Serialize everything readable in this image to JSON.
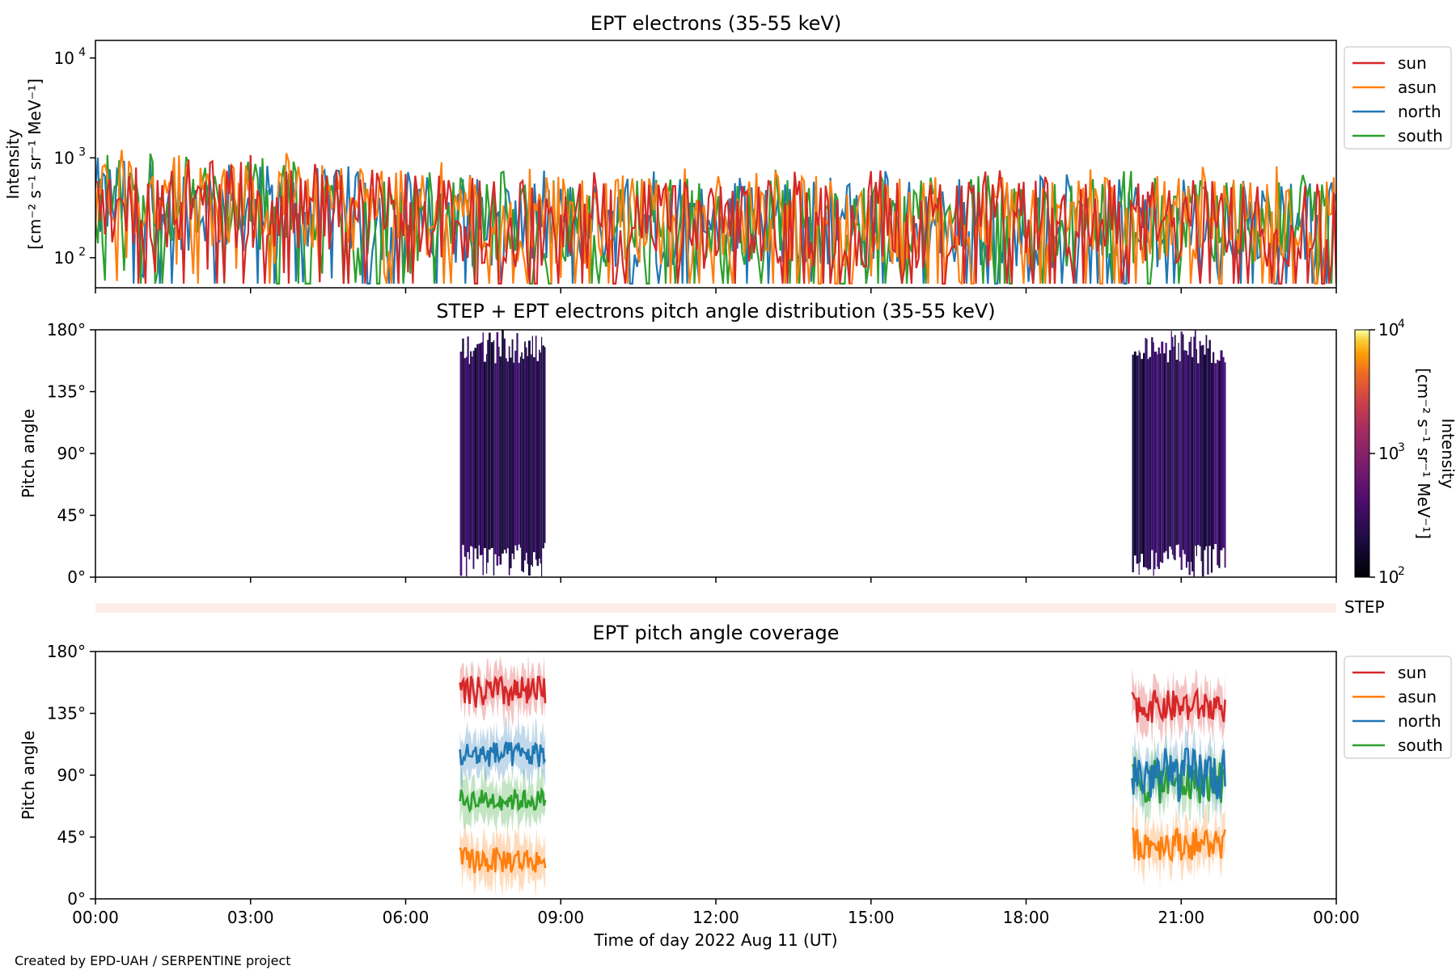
{
  "colors": {
    "sun": "#d62728",
    "asun": "#ff7f0e",
    "north": "#1f77b4",
    "south": "#2ca02c",
    "step_strip": "#fdeee9"
  },
  "credit": "Created by EPD-UAH / SERPENTINE project",
  "xaxis": {
    "label": "Time of day 2022 Aug 11 (UT)",
    "range_hours": [
      0,
      24
    ],
    "ticks": [
      {
        "hour": 0,
        "label": "00:00"
      },
      {
        "hour": 3,
        "label": "03:00"
      },
      {
        "hour": 6,
        "label": "06:00"
      },
      {
        "hour": 9,
        "label": "09:00"
      },
      {
        "hour": 12,
        "label": "12:00"
      },
      {
        "hour": 15,
        "label": "15:00"
      },
      {
        "hour": 18,
        "label": "18:00"
      },
      {
        "hour": 21,
        "label": "21:00"
      },
      {
        "hour": 24,
        "label": "00:00"
      }
    ]
  },
  "chart_data": [
    {
      "type": "line",
      "title": "EPT electrons (35-55 keV)",
      "ylabel_line1": "Intensity",
      "ylabel_line2": "[cm⁻² s⁻¹ sr⁻¹ MeV⁻¹]",
      "yscale": "log",
      "ylim": [
        50,
        15000
      ],
      "yticks": [
        {
          "value": 100,
          "base": "10",
          "exp": "2"
        },
        {
          "value": 1000,
          "base": "10",
          "exp": "3"
        },
        {
          "value": 10000,
          "base": "10",
          "exp": "4"
        }
      ],
      "legend_placement": "outside-right-top",
      "series": [
        {
          "name": "sun",
          "color_key": "sun",
          "baseline_early": 420,
          "baseline_late": 240,
          "min": 55,
          "max": 1200,
          "time_range_hours": [
            0,
            24
          ]
        },
        {
          "name": "asun",
          "color_key": "asun",
          "baseline_early": 460,
          "baseline_late": 260,
          "min": 55,
          "max": 1200,
          "time_range_hours": [
            0,
            24
          ]
        },
        {
          "name": "north",
          "color_key": "north",
          "baseline_early": 400,
          "baseline_late": 240,
          "min": 55,
          "max": 1100,
          "time_range_hours": [
            0,
            24
          ]
        },
        {
          "name": "south",
          "color_key": "south",
          "baseline_early": 430,
          "baseline_late": 250,
          "min": 55,
          "max": 1100,
          "time_range_hours": [
            0,
            24
          ]
        }
      ]
    },
    {
      "type": "heatmap",
      "title": "STEP + EPT electrons pitch angle distribution (35-55 keV)",
      "ylabel": "Pitch angle",
      "ylim": [
        0,
        180
      ],
      "yticks": [
        {
          "value": 0,
          "label": "0°"
        },
        {
          "value": 45,
          "label": "45°"
        },
        {
          "value": 90,
          "label": "90°"
        },
        {
          "value": 135,
          "label": "135°"
        },
        {
          "value": 180,
          "label": "180°"
        }
      ],
      "data_intervals_hours": [
        [
          7.05,
          8.7
        ],
        [
          20.05,
          21.85
        ]
      ],
      "intensity_typical": 200,
      "colorbar": {
        "label_line1": "Intensity",
        "label_line2": "[cm⁻² s⁻¹ sr⁻¹ MeV⁻¹]",
        "scale": "log",
        "range": [
          100,
          10000
        ],
        "ticks": [
          {
            "value": 100,
            "base": "10",
            "exp": "2"
          },
          {
            "value": 1000,
            "base": "10",
            "exp": "3"
          },
          {
            "value": 10000,
            "base": "10",
            "exp": "4"
          }
        ]
      }
    },
    {
      "type": "table",
      "label": "STEP",
      "note": "STEP coverage strip spanning the full day"
    },
    {
      "type": "line",
      "title": "EPT pitch angle coverage",
      "ylabel": "Pitch angle",
      "ylim": [
        0,
        180
      ],
      "yticks": [
        {
          "value": 0,
          "label": "0°"
        },
        {
          "value": 45,
          "label": "45°"
        },
        {
          "value": 90,
          "label": "90°"
        },
        {
          "value": 135,
          "label": "135°"
        },
        {
          "value": 180,
          "label": "180°"
        }
      ],
      "legend_placement": "outside-right-top",
      "data_intervals_hours": [
        [
          7.05,
          8.7
        ],
        [
          20.05,
          21.85
        ]
      ],
      "series": [
        {
          "name": "sun",
          "color_key": "sun",
          "mean_deg": [
            150,
            140
          ],
          "spread_deg": [
            15,
            15
          ]
        },
        {
          "name": "asun",
          "color_key": "asun",
          "mean_deg": [
            28,
            40
          ],
          "spread_deg": [
            12,
            15
          ]
        },
        {
          "name": "north",
          "color_key": "north",
          "mean_deg": [
            105,
            90
          ],
          "spread_deg": [
            12,
            25
          ]
        },
        {
          "name": "south",
          "color_key": "south",
          "mean_deg": [
            72,
            85
          ],
          "spread_deg": [
            10,
            20
          ]
        }
      ]
    }
  ]
}
